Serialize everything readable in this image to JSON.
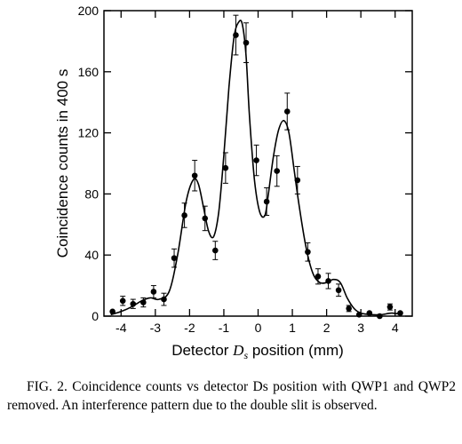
{
  "chart_data": {
    "type": "scatter",
    "title": "",
    "xlabel_prefix": "Detector ",
    "xlabel_var": "D",
    "xlabel_sub": "s",
    "xlabel_suffix": " position (mm)",
    "ylabel": "Coincidence counts in 400 s",
    "xlim": [
      -4.5,
      4.5
    ],
    "ylim": [
      0,
      200
    ],
    "xticks": [
      -4,
      -3,
      -2,
      -1,
      0,
      1,
      2,
      3,
      4
    ],
    "yticks": [
      0,
      40,
      80,
      120,
      160,
      200
    ],
    "grid": false,
    "series": [
      {
        "kind": "points_with_error_bars",
        "points": [
          {
            "x": -4.25,
            "y": 3,
            "err": 0
          },
          {
            "x": -3.95,
            "y": 10,
            "err": 3
          },
          {
            "x": -3.65,
            "y": 8,
            "err": 3
          },
          {
            "x": -3.35,
            "y": 9,
            "err": 3
          },
          {
            "x": -3.05,
            "y": 16,
            "err": 4
          },
          {
            "x": -2.75,
            "y": 11,
            "err": 4
          },
          {
            "x": -2.45,
            "y": 38,
            "err": 6
          },
          {
            "x": -2.15,
            "y": 66,
            "err": 8
          },
          {
            "x": -1.85,
            "y": 92,
            "err": 10
          },
          {
            "x": -1.55,
            "y": 64,
            "err": 8
          },
          {
            "x": -1.25,
            "y": 43,
            "err": 6
          },
          {
            "x": -0.95,
            "y": 97,
            "err": 10
          },
          {
            "x": -0.65,
            "y": 184,
            "err": 13
          },
          {
            "x": -0.35,
            "y": 179,
            "err": 13
          },
          {
            "x": -0.05,
            "y": 102,
            "err": 10
          },
          {
            "x": 0.25,
            "y": 75,
            "err": 9
          },
          {
            "x": 0.55,
            "y": 95,
            "err": 10
          },
          {
            "x": 0.85,
            "y": 134,
            "err": 12
          },
          {
            "x": 1.15,
            "y": 89,
            "err": 9
          },
          {
            "x": 1.45,
            "y": 42,
            "err": 6
          },
          {
            "x": 1.75,
            "y": 26,
            "err": 5
          },
          {
            "x": 2.05,
            "y": 23,
            "err": 5
          },
          {
            "x": 2.35,
            "y": 17,
            "err": 4
          },
          {
            "x": 2.65,
            "y": 5,
            "err": 2
          },
          {
            "x": 2.95,
            "y": 1,
            "err": 0
          },
          {
            "x": 3.25,
            "y": 2,
            "err": 0
          },
          {
            "x": 3.55,
            "y": 0,
            "err": 0
          },
          {
            "x": 3.85,
            "y": 6,
            "err": 2
          },
          {
            "x": 4.15,
            "y": 2,
            "err": 0
          }
        ]
      },
      {
        "kind": "fit_curve",
        "x": [
          -4.3,
          -4.0,
          -3.7,
          -3.4,
          -3.15,
          -2.9,
          -2.6,
          -2.35,
          -2.1,
          -1.9,
          -1.75,
          -1.6,
          -1.45,
          -1.3,
          -1.15,
          -1.0,
          -0.85,
          -0.7,
          -0.55,
          -0.45,
          -0.35,
          -0.25,
          -0.1,
          0.05,
          0.2,
          0.3,
          0.45,
          0.6,
          0.75,
          0.9,
          1.05,
          1.2,
          1.4,
          1.6,
          1.8,
          2.0,
          2.2,
          2.4,
          2.6,
          2.8,
          3.0,
          3.3,
          3.6,
          3.9,
          4.2
        ],
        "y": [
          1,
          3,
          6,
          10,
          12,
          11,
          16,
          40,
          75,
          89,
          87,
          72,
          56,
          52,
          68,
          105,
          150,
          183,
          193,
          190,
          170,
          130,
          88,
          68,
          66,
          80,
          105,
          122,
          128,
          120,
          96,
          72,
          45,
          28,
          22,
          22,
          24,
          22,
          12,
          5,
          2,
          1,
          1,
          2,
          1
        ]
      }
    ]
  },
  "caption": "FIG. 2. Coincidence counts vs detector Ds position with QWP1 and QWP2 removed. An interference pattern due to the double slit is observed."
}
